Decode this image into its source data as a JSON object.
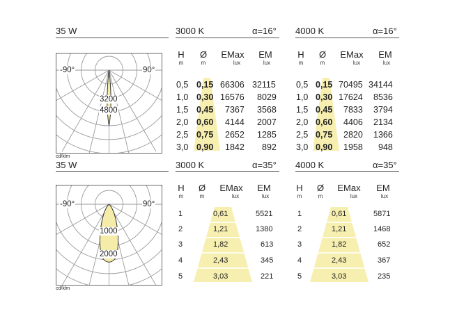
{
  "colors": {
    "highlight": "#f7efb0",
    "lobe": "#f5ecaa",
    "grid": "#999999",
    "rule": "#555555"
  },
  "sections": [
    {
      "power": "35 W",
      "left": {
        "temp": "3000 K",
        "alpha": "α=16°"
      },
      "right": {
        "temp": "4000 K",
        "alpha": "α=16°"
      },
      "diagram": {
        "left_label": "-90°",
        "right_label": "90°",
        "ring1": "3200",
        "ring2": "4800",
        "unit": "cd/klm"
      },
      "headers": {
        "h": "H",
        "d": "Ø",
        "emax": "EMax",
        "em": "EM",
        "u_h": "m",
        "u_d": "m",
        "u_emax": "lux",
        "u_em": "lux"
      },
      "left_rows": [
        {
          "h": "0,5",
          "d": "0,15",
          "emax": "66306",
          "em": "32115"
        },
        {
          "h": "1,0",
          "d": "0,30",
          "emax": "16576",
          "em": "8029"
        },
        {
          "h": "1,5",
          "d": "0,45",
          "emax": "7367",
          "em": "3568"
        },
        {
          "h": "2,0",
          "d": "0,60",
          "emax": "4144",
          "em": "2007"
        },
        {
          "h": "2,5",
          "d": "0,75",
          "emax": "2652",
          "em": "1285"
        },
        {
          "h": "3,0",
          "d": "0,90",
          "emax": "1842",
          "em": "892"
        }
      ],
      "right_rows": [
        {
          "h": "0,5",
          "d": "0,15",
          "emax": "70495",
          "em": "34144"
        },
        {
          "h": "1,0",
          "d": "0,30",
          "emax": "17624",
          "em": "8536"
        },
        {
          "h": "1,5",
          "d": "0,45",
          "emax": "7833",
          "em": "3794"
        },
        {
          "h": "2,0",
          "d": "0,60",
          "emax": "4406",
          "em": "2134"
        },
        {
          "h": "2,5",
          "d": "0,75",
          "emax": "2820",
          "em": "1366"
        },
        {
          "h": "3,0",
          "d": "0,90",
          "emax": "1958",
          "em": "948"
        }
      ]
    },
    {
      "power": "35 W",
      "left": {
        "temp": "3000 K",
        "alpha": "α=35°"
      },
      "right": {
        "temp": "4000 K",
        "alpha": "α=35°"
      },
      "diagram": {
        "left_label": "-90°",
        "right_label": "90°",
        "ring1": "1000",
        "ring2": "2000",
        "unit": "cd/klm"
      },
      "headers": {
        "h": "H",
        "d": "Ø",
        "emax": "EMax",
        "em": "EM",
        "u_h": "m",
        "u_d": "m",
        "u_emax": "lux",
        "u_em": "lux"
      },
      "left_rows": [
        {
          "h": "1",
          "d": "0,61",
          "em": "5521"
        },
        {
          "h": "2",
          "d": "1,21",
          "em": "1380"
        },
        {
          "h": "3",
          "d": "1,82",
          "em": "613"
        },
        {
          "h": "4",
          "d": "2,43",
          "em": "345"
        },
        {
          "h": "5",
          "d": "3,03",
          "em": "221"
        }
      ],
      "right_rows": [
        {
          "h": "1",
          "d": "0,61",
          "em": "5871"
        },
        {
          "h": "2",
          "d": "1,21",
          "em": "1468"
        },
        {
          "h": "3",
          "d": "1,82",
          "em": "652"
        },
        {
          "h": "4",
          "d": "2,43",
          "em": "367"
        },
        {
          "h": "5",
          "d": "3,03",
          "em": "235"
        }
      ]
    }
  ]
}
